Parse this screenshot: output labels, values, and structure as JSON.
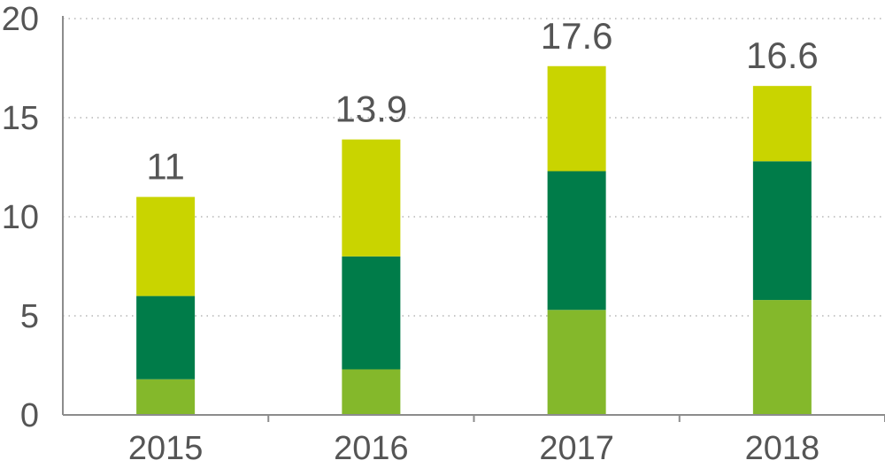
{
  "chart_data": {
    "type": "bar",
    "stacked": true,
    "title": "",
    "xlabel": "",
    "ylabel": "",
    "categories": [
      "2015",
      "2016",
      "2017",
      "2018"
    ],
    "ylim": [
      0,
      20
    ],
    "yticks": [
      0,
      5,
      10,
      15,
      20
    ],
    "grid": true,
    "grid_style": "dotted",
    "series": [
      {
        "values": [
          1.8,
          2.3,
          5.3,
          5.8
        ],
        "color": "#84b82b"
      },
      {
        "values": [
          4.2,
          5.7,
          7.0,
          7.0
        ],
        "color": "#007c49"
      },
      {
        "values": [
          5.0,
          5.9,
          5.3,
          3.8
        ],
        "color": "#c9d400"
      }
    ],
    "totals": [
      "11",
      "13.9",
      "17.6",
      "16.6"
    ]
  }
}
